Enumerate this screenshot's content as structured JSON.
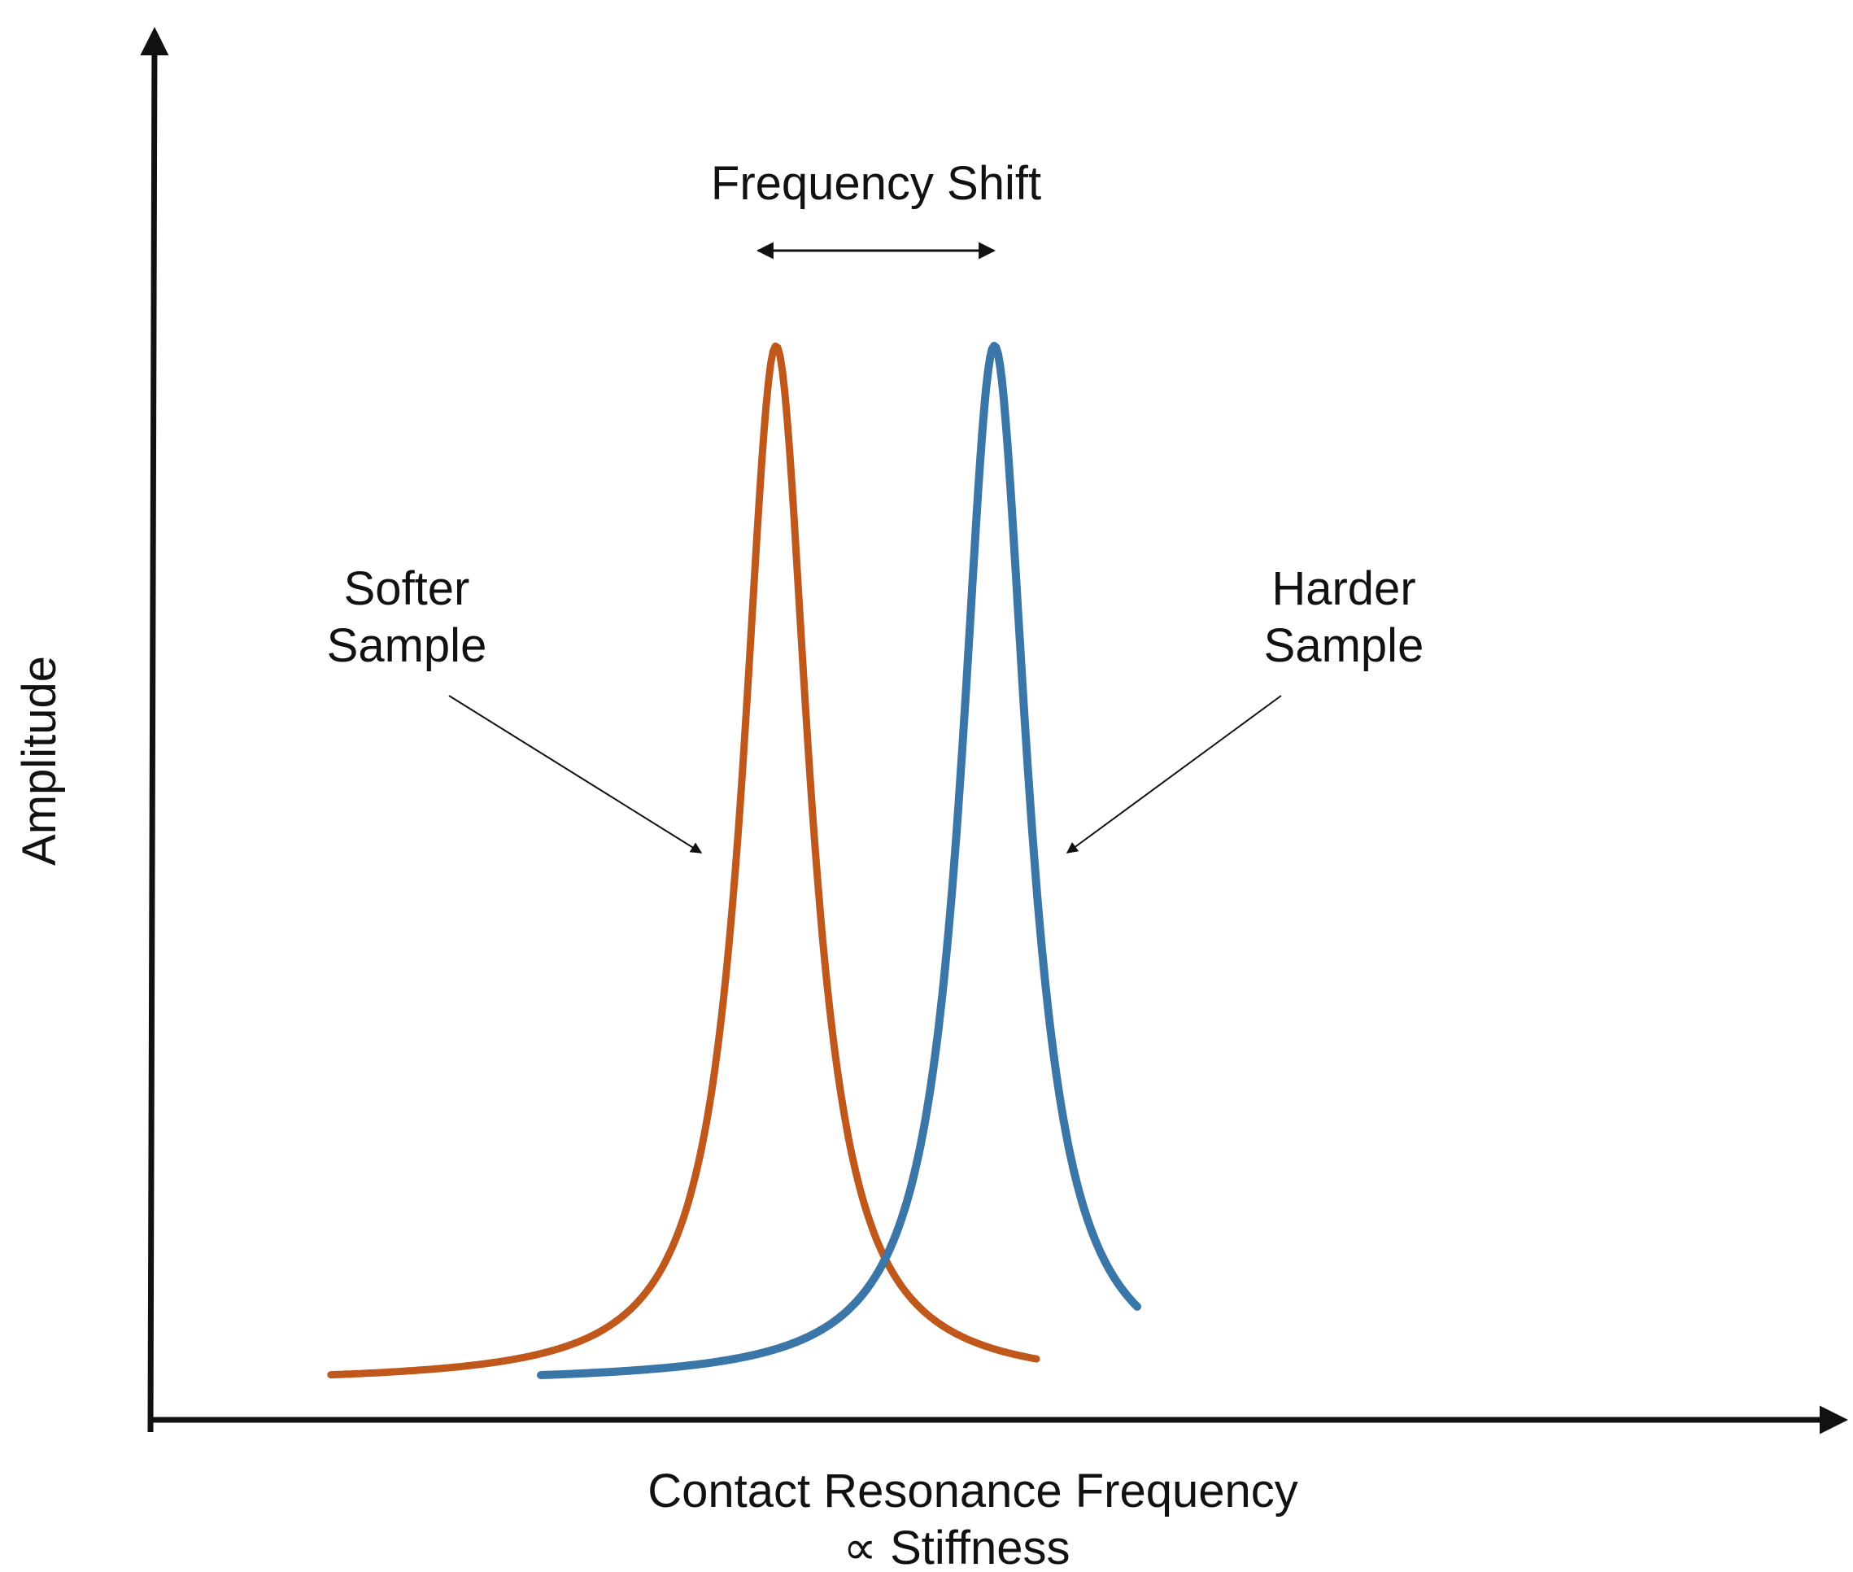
{
  "title": "",
  "axes": {
    "y_label": "Amplitude",
    "x_label_line1": "Contact Resonance Frequency",
    "x_label_line2": "∝ Stiffness"
  },
  "annotations": {
    "frequency_shift": "Frequency Shift",
    "softer_line1": "Softer",
    "softer_line2": "Sample",
    "harder_line1": "Harder",
    "harder_line2": "Sample"
  },
  "colors": {
    "softer_curve": "#c0581c",
    "harder_curve": "#3a76a8",
    "axis": "#111111"
  },
  "curves": {
    "softer": {
      "peak_frequency": 0.37,
      "relative_amplitude": 1.0
    },
    "harder": {
      "peak_frequency": 0.5,
      "relative_amplitude": 1.0
    }
  },
  "chart_data": {
    "type": "line",
    "title": "",
    "xlabel": "Contact Resonance Frequency ∝ Stiffness",
    "ylabel": "Amplitude",
    "grid": false,
    "series": [
      {
        "name": "Softer Sample",
        "peak_x": 0.37,
        "peak_y": 1.0
      },
      {
        "name": "Harder Sample",
        "peak_x": 0.5,
        "peak_y": 1.0
      }
    ]
  }
}
